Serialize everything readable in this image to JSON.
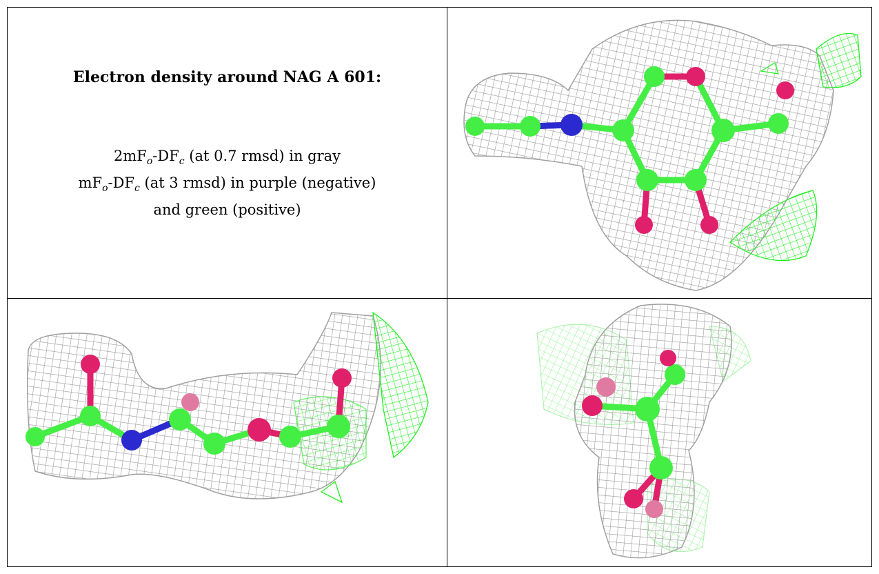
{
  "title": "Electron density around NAG A 601:",
  "legend": {
    "line1_prefix": "2mF",
    "line1_sub1": "o",
    "line1_mid": "-DF",
    "line1_sub2": "c",
    "line1_suffix": " (at 0.7 rmsd) in gray",
    "line2_prefix": "mF",
    "line2_sub1": "o",
    "line2_mid": "-DF",
    "line2_sub2": "c",
    "line2_suffix": " (at 3 rmsd) in purple (negative)",
    "line3": "and green (positive)"
  },
  "colors": {
    "mesh_gray": "#9a9a9a",
    "mesh_green": "#22ee22",
    "carbon": "#44ee44",
    "oxygen": "#e0206a",
    "nitrogen": "#2a2ad0"
  },
  "images": [
    "density-view-top",
    "density-view-side",
    "density-view-end"
  ]
}
